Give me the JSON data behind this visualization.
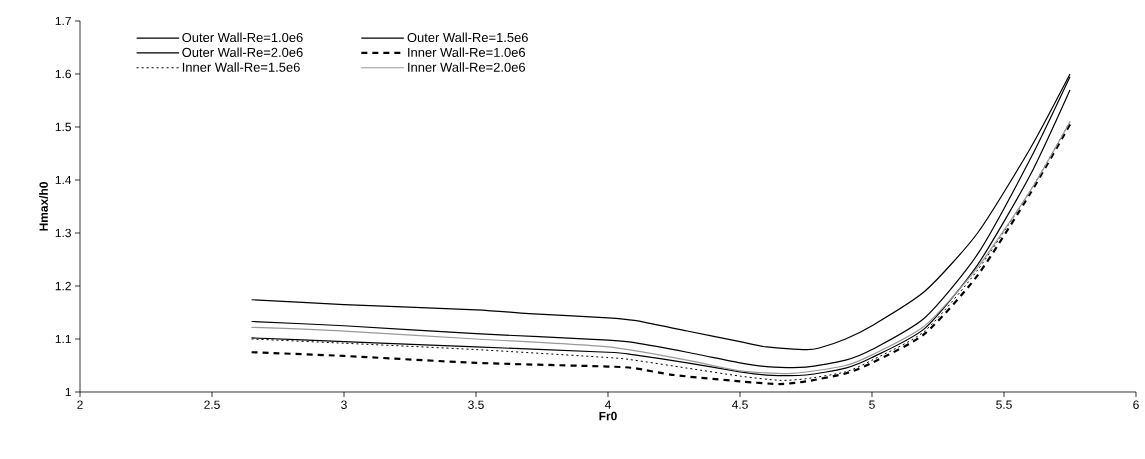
{
  "chart_data": {
    "type": "line",
    "xlabel": "Fr0",
    "ylabel": "Hmax/h0",
    "xlim": [
      2,
      6
    ],
    "xticks": [
      2,
      2.5,
      3,
      3.5,
      4,
      4.5,
      5,
      5.5,
      6
    ],
    "ylim": [
      1,
      1.7
    ],
    "yticks": [
      1,
      1.1,
      1.2,
      1.3,
      1.4,
      1.5,
      1.6,
      1.7
    ],
    "grid": false,
    "legend": "top",
    "series": [
      {
        "name": "Outer Wall-Re=1.0e6",
        "color": "#000000",
        "line_style": "solid",
        "x": [
          2.65,
          3.0,
          3.5,
          4.0,
          4.1,
          4.3,
          4.5,
          4.6,
          4.75,
          4.9,
          5.0,
          5.2,
          5.4,
          5.6,
          5.75
        ],
        "values": [
          1.102,
          1.095,
          1.085,
          1.075,
          1.07,
          1.055,
          1.038,
          1.032,
          1.032,
          1.045,
          1.065,
          1.12,
          1.24,
          1.41,
          1.57
        ]
      },
      {
        "name": "Outer Wall-Re=1.5e6",
        "color": "#000000",
        "line_style": "solid",
        "x": [
          2.65,
          3.0,
          3.5,
          3.7,
          4.0,
          4.1,
          4.3,
          4.5,
          4.6,
          4.75,
          4.8,
          4.9,
          5.0,
          5.2,
          5.4,
          5.6,
          5.75
        ],
        "values": [
          1.174,
          1.165,
          1.155,
          1.148,
          1.14,
          1.135,
          1.115,
          1.095,
          1.085,
          1.08,
          1.083,
          1.1,
          1.125,
          1.19,
          1.3,
          1.46,
          1.6
        ]
      },
      {
        "name": "Outer Wall-Re=2.0e6",
        "color": "#000000",
        "line_style": "solid",
        "x": [
          2.65,
          3.0,
          3.5,
          4.0,
          4.1,
          4.3,
          4.5,
          4.6,
          4.75,
          4.9,
          5.0,
          5.2,
          5.4,
          5.6,
          5.75
        ],
        "values": [
          1.133,
          1.125,
          1.11,
          1.098,
          1.093,
          1.075,
          1.055,
          1.048,
          1.047,
          1.06,
          1.08,
          1.14,
          1.26,
          1.44,
          1.595
        ]
      },
      {
        "name": "Inner Wall-Re=1.0e6",
        "color": "#000000",
        "line_style": "dashed",
        "x": [
          2.65,
          3.0,
          3.5,
          4.0,
          4.1,
          4.25,
          4.5,
          4.65,
          4.75,
          4.9,
          5.0,
          5.2,
          5.4,
          5.6,
          5.75
        ],
        "values": [
          1.075,
          1.068,
          1.055,
          1.048,
          1.045,
          1.032,
          1.02,
          1.015,
          1.02,
          1.035,
          1.055,
          1.11,
          1.22,
          1.375,
          1.505
        ]
      },
      {
        "name": "Inner Wall-Re=1.5e6",
        "color": "#000000",
        "line_style": "dotted",
        "x": [
          2.65,
          3.0,
          3.5,
          4.0,
          4.1,
          4.3,
          4.5,
          4.65,
          4.75,
          4.9,
          5.0,
          5.2,
          5.4,
          5.6,
          5.75
        ],
        "values": [
          1.1,
          1.092,
          1.08,
          1.065,
          1.06,
          1.045,
          1.03,
          1.022,
          1.025,
          1.038,
          1.06,
          1.115,
          1.23,
          1.38,
          1.51
        ]
      },
      {
        "name": "Inner Wall-Re=2.0e6",
        "color": "#999999",
        "line_style": "solid",
        "x": [
          2.65,
          3.0,
          3.5,
          4.0,
          4.3,
          4.5,
          4.7,
          4.9,
          5.0,
          5.2,
          5.4,
          5.6,
          5.75
        ],
        "values": [
          1.122,
          1.115,
          1.1,
          1.085,
          1.06,
          1.04,
          1.035,
          1.05,
          1.07,
          1.125,
          1.235,
          1.38,
          1.51
        ]
      }
    ]
  }
}
